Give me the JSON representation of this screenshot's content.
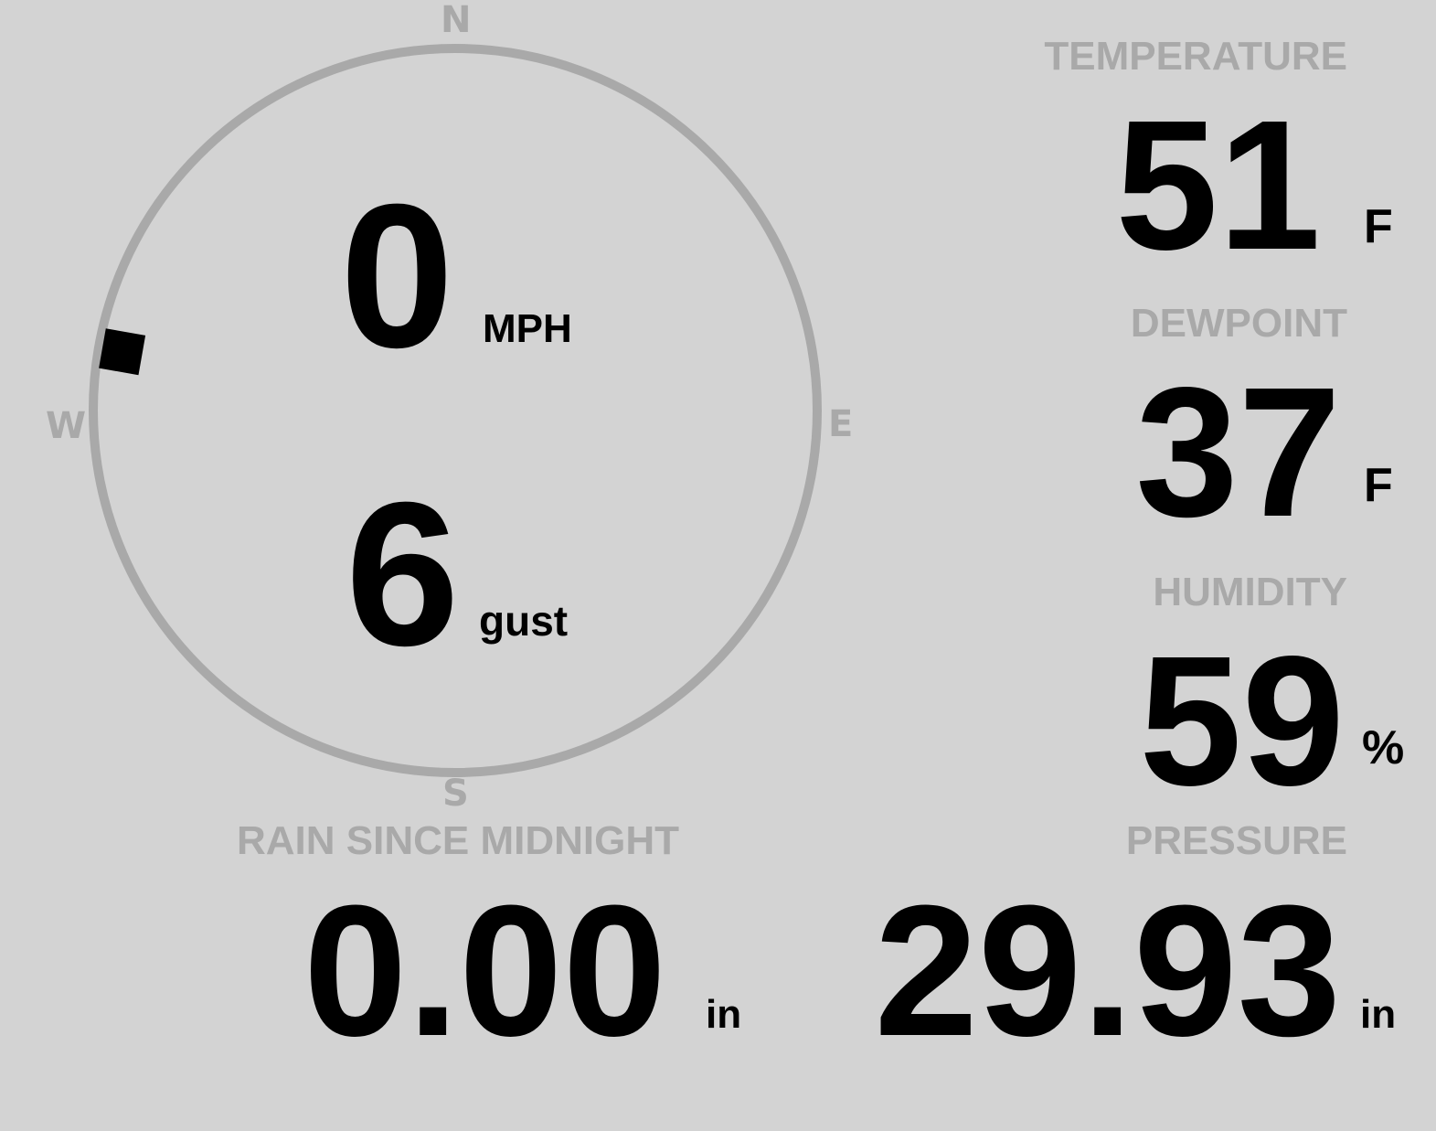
{
  "colors": {
    "background": "#d3d3d3",
    "muted": "#a9a9a9",
    "value": "#000000"
  },
  "compass": {
    "north": "N",
    "south": "S",
    "east": "E",
    "west": "W",
    "direction_deg": 280,
    "speed": "0",
    "speed_unit": "MPH",
    "gust": "6",
    "gust_unit": "gust"
  },
  "temperature": {
    "label": "TEMPERATURE",
    "value": "51",
    "unit": "F"
  },
  "dewpoint": {
    "label": "DEWPOINT",
    "value": "37",
    "unit": "F"
  },
  "humidity": {
    "label": "HUMIDITY",
    "value": "59",
    "unit": "%"
  },
  "rain": {
    "label": "RAIN SINCE MIDNIGHT",
    "value": "0.00",
    "unit": "in"
  },
  "pressure": {
    "label": "PRESSURE",
    "value": "29.93",
    "unit": "in"
  }
}
